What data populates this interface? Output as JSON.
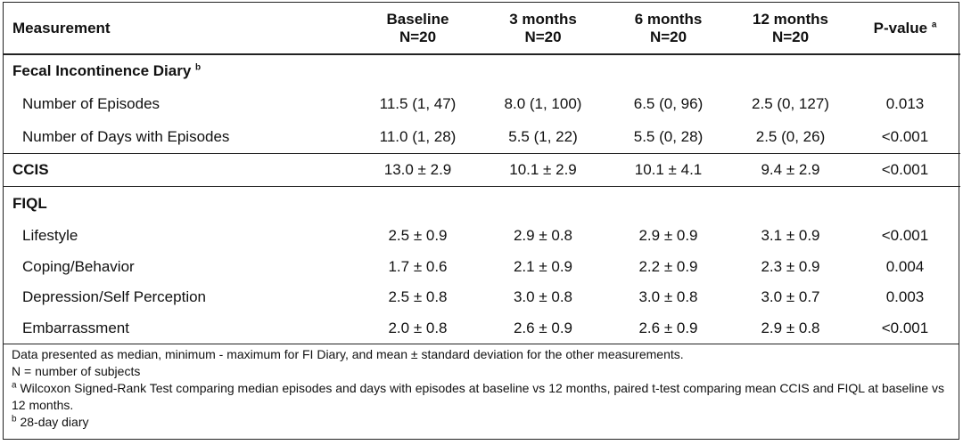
{
  "table": {
    "headers": [
      {
        "line1": "Measurement",
        "line2": "",
        "sup": ""
      },
      {
        "line1": "Baseline",
        "line2": "N=20",
        "sup": ""
      },
      {
        "line1": "3 months",
        "line2": "N=20",
        "sup": ""
      },
      {
        "line1": "6 months",
        "line2": "N=20",
        "sup": ""
      },
      {
        "line1": "12 months",
        "line2": "N=20",
        "sup": ""
      },
      {
        "line1": "P-value",
        "line2": "",
        "sup": "a"
      }
    ],
    "sections": [
      {
        "title": "Fecal Incontinence Diary",
        "title_sup": "b",
        "rows": [
          {
            "label": "Number of Episodes",
            "values": [
              "11.5 (1, 47)",
              "8.0 (1, 100)",
              "6.5 (0, 96)",
              "2.5 (0, 127)",
              "0.013"
            ]
          },
          {
            "label": "Number of Days with Episodes",
            "values": [
              "11.0 (1, 28)",
              "5.5 (1, 22)",
              "5.5 (0, 28)",
              "2.5 (0, 26)",
              "<0.001"
            ]
          }
        ]
      },
      {
        "title": "CCIS",
        "values": [
          "13.0 ± 2.9",
          "10.1 ± 2.9",
          "10.1 ± 4.1",
          "9.4 ± 2.9",
          "<0.001"
        ]
      },
      {
        "title": "FIQL",
        "rows": [
          {
            "label": "Lifestyle",
            "values": [
              "2.5 ± 0.9",
              "2.9 ± 0.8",
              "2.9 ± 0.9",
              "3.1 ± 0.9",
              "<0.001"
            ]
          },
          {
            "label": "Coping/Behavior",
            "values": [
              "1.7 ± 0.6",
              "2.1 ± 0.9",
              "2.2 ± 0.9",
              "2.3 ± 0.9",
              "0.004"
            ]
          },
          {
            "label": "Depression/Self Perception",
            "values": [
              "2.5 ± 0.8",
              "3.0 ± 0.8",
              "3.0 ± 0.8",
              "3.0 ± 0.7",
              "0.003"
            ]
          },
          {
            "label": "Embarrassment",
            "values": [
              "2.0 ± 0.8",
              "2.6 ± 0.9",
              "2.6 ± 0.9",
              "2.9 ± 0.8",
              "<0.001"
            ]
          }
        ]
      }
    ]
  },
  "footnotes": {
    "data_note": "Data presented as median, minimum - maximum for FI Diary, and mean ± standard deviation for the other measurements.",
    "n_note": "N = number of subjects",
    "a_marker": "a",
    "a_text": "Wilcoxon Signed-Rank Test comparing median episodes and days with episodes at baseline vs 12 months, paired t-test comparing mean CCIS and FIQL at baseline vs 12 months.",
    "b_marker": "b",
    "b_text": "28-day diary"
  }
}
